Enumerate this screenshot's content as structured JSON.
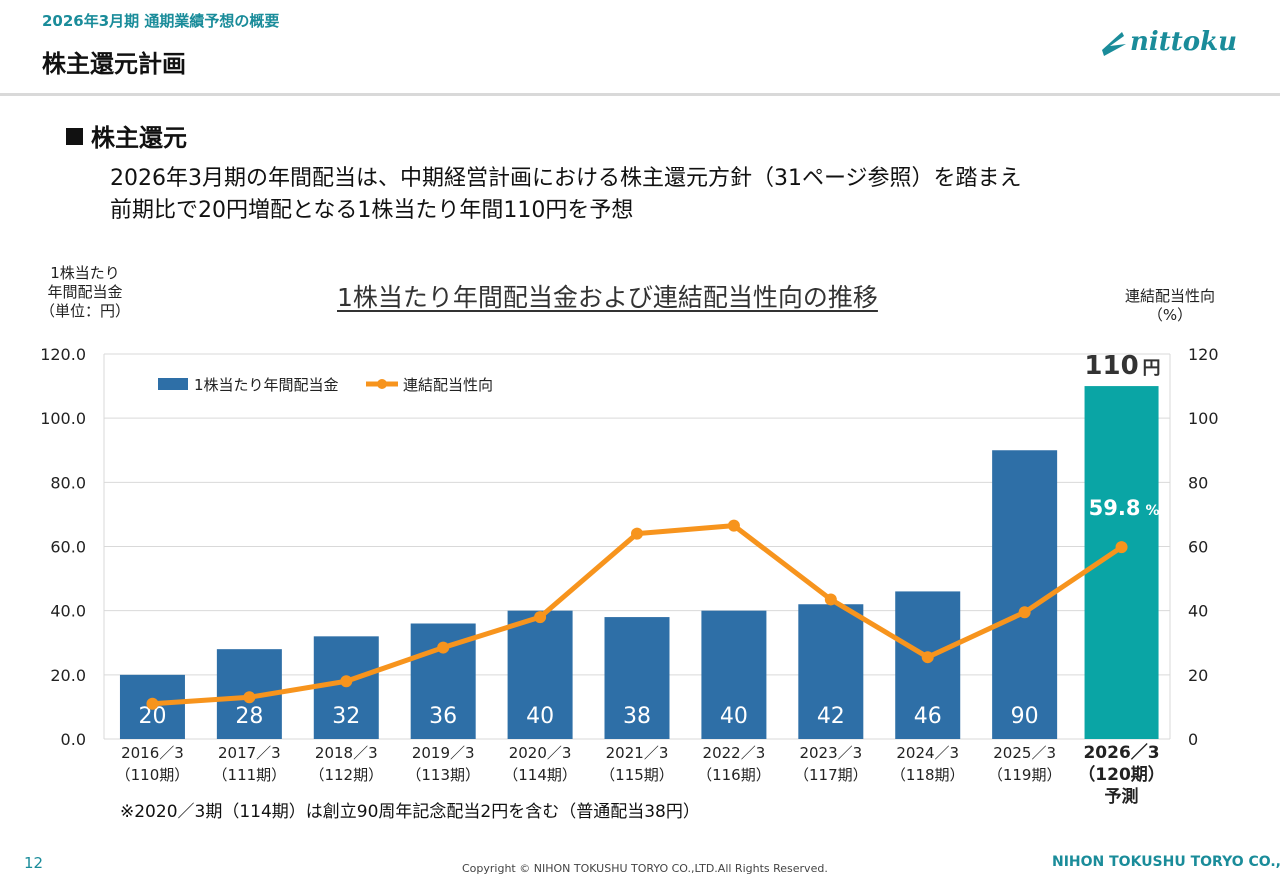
{
  "header": {
    "subtitle": "2026年3月期 通期業績予想の概要",
    "title": "株主還元計画",
    "logo_text": "nittoku"
  },
  "section": {
    "heading": "株主還元",
    "desc_line1": "2026年3月期の年間配当は、中期経営計画における株主還元方針（31ページ参照）を踏まえ",
    "desc_line2": "前期比で20円増配となる1株当たり年間110円を予想"
  },
  "axis_labels": {
    "left_line1": "1株当たり",
    "left_line2": "年間配当金",
    "left_line3": "（単位：円）",
    "right_line1": "連結配当性向",
    "right_line2": "（%）"
  },
  "chart_data": {
    "type": "bar",
    "title": "1株当たり年間配当金および連結配当性向の推移",
    "categories": [
      [
        "2016／3",
        "（110期）"
      ],
      [
        "2017／3",
        "（111期）"
      ],
      [
        "2018／3",
        "（112期）"
      ],
      [
        "2019／3",
        "（113期）"
      ],
      [
        "2020／3",
        "（114期）"
      ],
      [
        "2021／3",
        "（115期）"
      ],
      [
        "2022／3",
        "（116期）"
      ],
      [
        "2023／3",
        "（117期）"
      ],
      [
        "2024／3",
        "（118期）"
      ],
      [
        "2025／3",
        "（119期）"
      ],
      [
        "2026／3",
        "（120期）",
        "予測"
      ]
    ],
    "series": [
      {
        "name": "1株当たり年間配当金",
        "type": "bar",
        "axis": "left",
        "values": [
          20,
          28,
          32,
          36,
          40,
          38,
          40,
          42,
          46,
          90,
          110
        ],
        "value_labels": [
          "20",
          "28",
          "32",
          "36",
          "40",
          "38",
          "40",
          "42",
          "46",
          "90",
          ""
        ]
      },
      {
        "name": "連結配当性向",
        "type": "line",
        "axis": "right",
        "values": [
          11,
          13,
          18,
          28.5,
          38,
          64,
          66.5,
          43.5,
          25.5,
          39.5,
          59.8
        ]
      }
    ],
    "y_left": {
      "ylim": [
        0,
        120
      ],
      "ticks": [
        "0.0",
        "20.0",
        "40.0",
        "60.0",
        "80.0",
        "100.0",
        "120.0"
      ]
    },
    "y_right": {
      "ylim": [
        0,
        120
      ],
      "ticks": [
        "0",
        "20",
        "40",
        "60",
        "80",
        "100",
        "120"
      ]
    },
    "highlight": {
      "index": 10,
      "dividend_label": "110",
      "dividend_unit": "円",
      "payout_label": "59.8",
      "payout_unit": "%"
    },
    "grid": true,
    "legend": "top-left",
    "colors": {
      "bar": "#2e6fa7",
      "bar_forecast": "#0aa5a5",
      "line": "#f7941d"
    }
  },
  "note": "※2020／3期（114期）は創立90周年記念配当2円を含む（普通配当38円）",
  "footer": {
    "page": "12",
    "copyright": "Copyright © NIHON TOKUSHU TORYO CO.,LTD.All Rights Reserved.",
    "company": "NIHON TOKUSHU TORYO CO.,LTD."
  }
}
